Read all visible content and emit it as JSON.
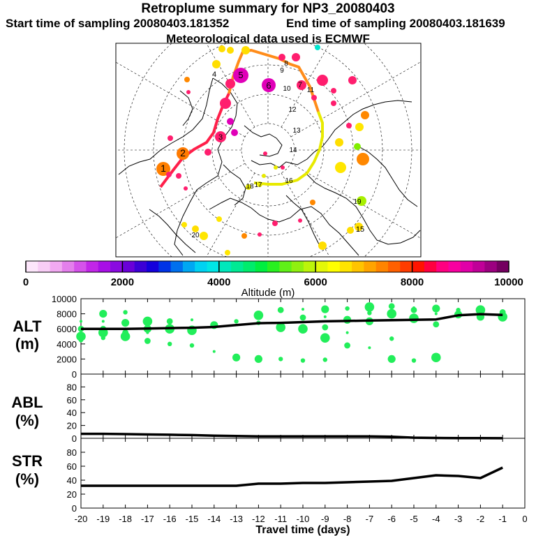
{
  "header": {
    "title": "Retroplume summary for NP3_20080403",
    "start_label": "Start time of sampling 20080403.181352",
    "end_label": "End time of sampling 20080403.181639",
    "met_label": "Meteorological data used is ECMWF"
  },
  "colorbar": {
    "label": "Altitude  (m)",
    "ticks": [
      "0",
      "2000",
      "4000",
      "6000",
      "8000",
      "10000"
    ],
    "colors": [
      "#fde6fb",
      "#f8cdf6",
      "#f1a9f1",
      "#e47fec",
      "#d552ea",
      "#c226e8",
      "#a80fe6",
      "#8a0ae0",
      "#6a00d8",
      "#3c00d6",
      "#1400dc",
      "#0033e6",
      "#0070ee",
      "#00a8f2",
      "#00d2f2",
      "#00e6e6",
      "#00e8bc",
      "#00ea94",
      "#00ec6c",
      "#00ee40",
      "#28f020",
      "#60f018",
      "#90f010",
      "#bcf40a",
      "#e4f808",
      "#ffff00",
      "#ffe400",
      "#ffc400",
      "#ffa400",
      "#ff8400",
      "#ff6000",
      "#ff3c00",
      "#ff1400",
      "#ff0040",
      "#ff0080",
      "#f800a0",
      "#e000a8",
      "#c00098",
      "#9c0080",
      "#740060"
    ]
  },
  "map": {
    "trajectory_numbers": [
      "1",
      "2",
      "3",
      "4",
      "5",
      "6",
      "7",
      "8",
      "9",
      "10",
      "11",
      "12",
      "13",
      "14",
      "15",
      "16",
      "17",
      "18",
      "19",
      "20"
    ]
  },
  "chart_data": [
    {
      "type": "line",
      "panel": "ALT",
      "ylabel": "ALT\n(m)",
      "ylabel_lines": [
        "ALT",
        "(m)"
      ],
      "ylim": [
        0,
        10000
      ],
      "yticks": [
        "0",
        "2000",
        "4000",
        "6000",
        "8000",
        "10000"
      ],
      "x": [
        -20,
        -19,
        -18,
        -17,
        -16,
        -15,
        -14,
        -13,
        -12,
        -11,
        -10,
        -9,
        -8,
        -7,
        -6,
        -5,
        -4,
        -3,
        -2,
        -1
      ],
      "values": [
        6000,
        6000,
        6000,
        6050,
        6100,
        6150,
        6250,
        6500,
        6750,
        6800,
        6900,
        7000,
        7050,
        7100,
        7150,
        7200,
        7250,
        7800,
        7950,
        7850
      ],
      "cluster_points": [
        {
          "x": -20,
          "y": [
            7000,
            6000,
            5000,
            4500
          ]
        },
        {
          "x": -19,
          "y": [
            8000,
            7000,
            6000,
            5500,
            4800
          ]
        },
        {
          "x": -18,
          "y": [
            8200,
            6800,
            6000,
            5500,
            5000
          ]
        },
        {
          "x": -17,
          "y": [
            7000,
            6400,
            6000,
            5500,
            4400
          ]
        },
        {
          "x": -16,
          "y": [
            7000,
            6000,
            4000
          ]
        },
        {
          "x": -15,
          "y": [
            7200,
            6000,
            5800,
            3800
          ]
        },
        {
          "x": -14,
          "y": [
            6500,
            3000
          ]
        },
        {
          "x": -13,
          "y": [
            7000,
            2200
          ]
        },
        {
          "x": -12,
          "y": [
            7800,
            6800,
            2000
          ]
        },
        {
          "x": -11,
          "y": [
            8500,
            6200,
            2000
          ]
        },
        {
          "x": -10,
          "y": [
            8600,
            7500,
            6000,
            1800
          ]
        },
        {
          "x": -9,
          "y": [
            8600,
            7600,
            6200,
            4800,
            1900
          ]
        },
        {
          "x": -8,
          "y": [
            8700,
            7200,
            5500,
            3800
          ]
        },
        {
          "x": -7,
          "y": [
            8900,
            8100,
            7000,
            3500
          ]
        },
        {
          "x": -6,
          "y": [
            9000,
            8000,
            4700,
            2000
          ]
        },
        {
          "x": -5,
          "y": [
            8800,
            8500,
            7400,
            1800
          ]
        },
        {
          "x": -4,
          "y": [
            8700,
            8000,
            6600,
            2200
          ]
        },
        {
          "x": -3,
          "y": [
            8500,
            7900,
            7800
          ]
        },
        {
          "x": -2,
          "y": [
            8500,
            7800,
            7600
          ]
        },
        {
          "x": -1,
          "y": [
            8200,
            7600,
            7300
          ]
        }
      ]
    },
    {
      "type": "line",
      "panel": "ABL",
      "ylabel": "ABL\n(%)",
      "ylabel_lines": [
        "ABL",
        "(%)"
      ],
      "ylim": [
        0,
        100
      ],
      "yticks": [
        "0",
        "20",
        "40",
        "60",
        "80"
      ],
      "x": [
        -20,
        -19,
        -18,
        -17,
        -16,
        -15,
        -14,
        -13,
        -12,
        -11,
        -10,
        -9,
        -8,
        -7,
        -6,
        -5,
        -4,
        -3,
        -2,
        -1
      ],
      "values": [
        7,
        7,
        6.5,
        6,
        5.5,
        5,
        4,
        3.5,
        3,
        3,
        3,
        3,
        3,
        3,
        2.5,
        1,
        0.5,
        0.3,
        0.2,
        0.1
      ]
    },
    {
      "type": "line",
      "panel": "STR",
      "ylabel": "STR\n(%)",
      "ylabel_lines": [
        "STR",
        "(%)"
      ],
      "ylim": [
        0,
        100
      ],
      "yticks": [
        "0",
        "20",
        "40",
        "60",
        "80"
      ],
      "x": [
        -20,
        -19,
        -18,
        -17,
        -16,
        -15,
        -14,
        -13,
        -12,
        -11,
        -10,
        -9,
        -8,
        -7,
        -6,
        -5,
        -4,
        -3,
        -2,
        -1
      ],
      "values": [
        32,
        32,
        32,
        32,
        32,
        32,
        32,
        32,
        35,
        35,
        36,
        36,
        37,
        38,
        39,
        43,
        47,
        46,
        43,
        58
      ],
      "xlabel": "Travel time (days)",
      "xticks": [
        "-20",
        "-19",
        "-18",
        "-17",
        "-16",
        "-15",
        "-14",
        "-13",
        "-12",
        "-11",
        "-10",
        "-9",
        "-8",
        "-7",
        "-6",
        "-5",
        "-4",
        "-3",
        "-2",
        "-1",
        "0"
      ]
    }
  ]
}
